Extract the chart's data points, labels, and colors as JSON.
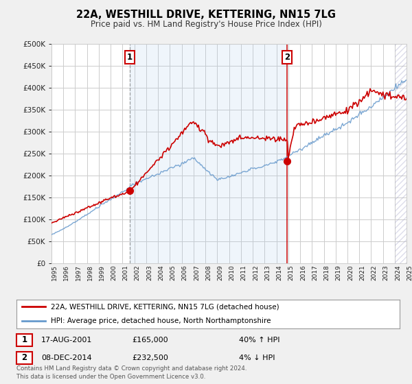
{
  "title1": "22A, WESTHILL DRIVE, KETTERING, NN15 7LG",
  "title2": "Price paid vs. HM Land Registry's House Price Index (HPI)",
  "ytick_values": [
    0,
    50000,
    100000,
    150000,
    200000,
    250000,
    300000,
    350000,
    400000,
    450000,
    500000
  ],
  "xlim": [
    1995,
    2025
  ],
  "ylim": [
    0,
    500000
  ],
  "background_color": "#f0f0f0",
  "plot_bg_color": "#ffffff",
  "grid_color": "#cccccc",
  "red_line_color": "#cc0000",
  "blue_line_color": "#6699cc",
  "shade_color": "#ddeeff",
  "sale1": {
    "year": 2001.625,
    "price": 165000,
    "label": "1"
  },
  "sale2": {
    "year": 2014.92,
    "price": 232500,
    "label": "2"
  },
  "legend_red": "22A, WESTHILL DRIVE, KETTERING, NN15 7LG (detached house)",
  "legend_blue": "HPI: Average price, detached house, North Northamptonshire",
  "footnote": "Contains HM Land Registry data © Crown copyright and database right 2024.\nThis data is licensed under the Open Government Licence v3.0.",
  "xtick_years": [
    1995,
    1996,
    1997,
    1998,
    1999,
    2000,
    2001,
    2002,
    2003,
    2004,
    2005,
    2006,
    2007,
    2008,
    2009,
    2010,
    2011,
    2012,
    2013,
    2014,
    2015,
    2016,
    2017,
    2018,
    2019,
    2020,
    2021,
    2022,
    2023,
    2024,
    2025
  ]
}
